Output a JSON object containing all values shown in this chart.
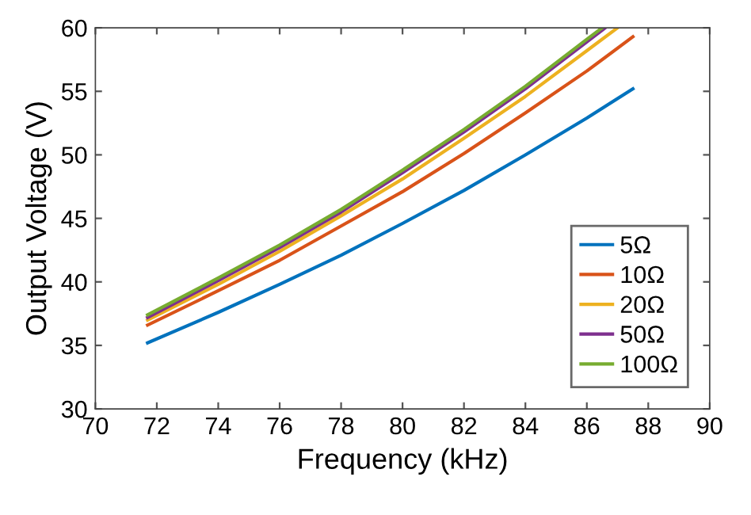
{
  "chart_data": {
    "type": "line",
    "xlabel": "Frequency (kHz)",
    "ylabel": "Output Voltage (V)",
    "xlim": [
      70,
      90
    ],
    "ylim": [
      30,
      60
    ],
    "xticks": [
      70,
      72,
      74,
      76,
      78,
      80,
      82,
      84,
      86,
      88,
      90
    ],
    "yticks": [
      30,
      35,
      40,
      45,
      50,
      55,
      60
    ],
    "grid": false,
    "legend": "bottom right",
    "marker": "none",
    "line_style": "solid",
    "series": [
      {
        "name": "5Ω",
        "color": "#0072bd",
        "x": [
          71.7,
          74,
          76,
          78,
          80,
          82,
          84,
          86,
          87.5
        ],
        "values": [
          35.2,
          37.6,
          39.8,
          42.1,
          44.6,
          47.2,
          50.0,
          52.9,
          55.2
        ]
      },
      {
        "name": "10Ω",
        "color": "#d95319",
        "x": [
          71.7,
          74,
          76,
          78,
          80,
          82,
          84,
          86,
          87.5
        ],
        "values": [
          36.6,
          39.3,
          41.7,
          44.4,
          47.1,
          50.1,
          53.3,
          56.6,
          59.3
        ]
      },
      {
        "name": "20Ω",
        "color": "#edb120",
        "x": [
          71.7,
          74,
          76,
          78,
          80,
          82,
          84,
          86,
          87.0
        ],
        "values": [
          37.0,
          39.8,
          42.4,
          45.2,
          48.1,
          51.3,
          54.6,
          58.2,
          60.0
        ]
      },
      {
        "name": "50Ω",
        "color": "#7e2f8e",
        "x": [
          71.7,
          74,
          76,
          78,
          80,
          82,
          84,
          86,
          86.6
        ],
        "values": [
          37.2,
          40.1,
          42.7,
          45.5,
          48.6,
          51.8,
          55.2,
          58.9,
          60.0
        ]
      },
      {
        "name": "100Ω",
        "color": "#77ac30",
        "x": [
          71.7,
          74,
          76,
          78,
          80,
          82,
          84,
          86,
          86.5
        ],
        "values": [
          37.4,
          40.3,
          42.9,
          45.7,
          48.8,
          52.0,
          55.4,
          59.1,
          60.0
        ]
      }
    ]
  }
}
